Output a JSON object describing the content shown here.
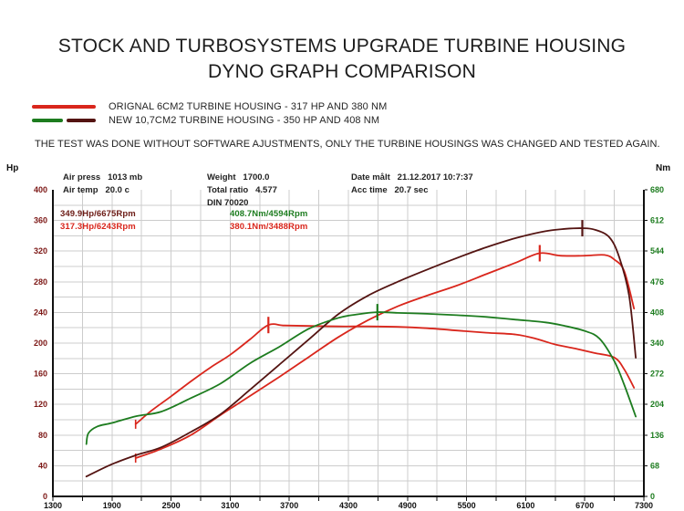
{
  "title": {
    "line1": "STOCK AND TURBOSYSTEMS UPGRADE TURBINE HOUSING",
    "line2": "DYNO GRAPH COMPARISON"
  },
  "legend": [
    {
      "label": "ORIGNAL 6CM2 TURBINE HOUSING - 317 HP AND 380 NM",
      "colors": [
        "#d9261c"
      ]
    },
    {
      "label": "NEW 10,7CM2 TURBINE HOUSING - 350 HP AND 408 NM",
      "colors": [
        "#1d7c1f",
        "#541412"
      ]
    }
  ],
  "note": "THE TEST WAS DONE WITHOUT SOFTWARE AJUSTMENTS, ONLY THE TURBINE HOUSINGS WAS CHANGED AND TESTED AGAIN.",
  "test_info": {
    "col1": [
      {
        "label": "Air press",
        "value": "1013 mb"
      },
      {
        "label": "Air temp",
        "value": "20.0 c"
      }
    ],
    "col2": [
      {
        "label": "Weight",
        "value": "1700.0"
      },
      {
        "label": "Total ratio",
        "value": "4.577"
      },
      {
        "label": "DIN 70020",
        "value": ""
      }
    ],
    "col3": [
      {
        "label": "Date målt",
        "value": "21.12.2017 10:7:37"
      },
      {
        "label": "Acc time",
        "value": "20.7 sec"
      }
    ]
  },
  "peak_annotations": [
    {
      "text": "349.9Hp/6675Rpm",
      "color": "#6b1a14"
    },
    {
      "text": "408.7Nm/4594Rpm",
      "color": "#1d7c1f"
    },
    {
      "text": "317.3Hp/6243Rpm",
      "color": "#d9261c"
    },
    {
      "text": "380.1Nm/3488Rpm",
      "color": "#d9261c"
    }
  ],
  "chart_data": {
    "type": "line",
    "grid": true,
    "x_axis": {
      "unit": "Rpm",
      "min": 1300,
      "max": 7300,
      "grid_step": 300,
      "label_step": 600,
      "labels": [
        1300,
        1900,
        2500,
        3100,
        3700,
        4300,
        4900,
        5500,
        6100,
        6700,
        7300
      ],
      "label_color": "#111111"
    },
    "y_left": {
      "unit": "Hp",
      "min": 0,
      "max": 400,
      "grid_step": 20,
      "ticks": [
        400,
        360,
        320,
        280,
        240,
        200,
        160,
        120,
        80,
        40,
        0
      ],
      "label_color": "#7c1715"
    },
    "y_right": {
      "unit": "Nm",
      "min": 0,
      "max": 680,
      "ticks": [
        680,
        612,
        544,
        476,
        408,
        340,
        272,
        204,
        136,
        68,
        0
      ],
      "label_color": "#1d7c1f"
    },
    "series": [
      {
        "id": "stock-power-hp",
        "axis": "left",
        "color": "#d9261c",
        "start_tick": true,
        "peak_marker": [
          6243,
          317.3
        ],
        "points": [
          [
            2140,
            50
          ],
          [
            2400,
            62
          ],
          [
            2700,
            80
          ],
          [
            3000,
            106
          ],
          [
            3300,
            131
          ],
          [
            3600,
            156
          ],
          [
            3900,
            182
          ],
          [
            4200,
            208
          ],
          [
            4500,
            230
          ],
          [
            4800,
            248
          ],
          [
            5100,
            262
          ],
          [
            5400,
            275
          ],
          [
            5700,
            290
          ],
          [
            6000,
            305
          ],
          [
            6243,
            317.3
          ],
          [
            6450,
            314
          ],
          [
            6700,
            314
          ],
          [
            6900,
            315
          ],
          [
            7000,
            309
          ],
          [
            7100,
            294
          ],
          [
            7200,
            245
          ]
        ]
      },
      {
        "id": "stock-torque-nm",
        "axis": "right",
        "color": "#d9261c",
        "start_tick": true,
        "peak_marker": [
          3488,
          380.1
        ],
        "points": [
          [
            2140,
            160
          ],
          [
            2300,
            190
          ],
          [
            2500,
            222
          ],
          [
            2700,
            255
          ],
          [
            2900,
            286
          ],
          [
            3100,
            314
          ],
          [
            3300,
            348
          ],
          [
            3488,
            380.1
          ],
          [
            3650,
            379
          ],
          [
            3900,
            378
          ],
          [
            4200,
            377
          ],
          [
            4500,
            377
          ],
          [
            4800,
            376
          ],
          [
            5100,
            373
          ],
          [
            5400,
            368
          ],
          [
            5700,
            363
          ],
          [
            6000,
            359
          ],
          [
            6200,
            350
          ],
          [
            6400,
            337
          ],
          [
            6600,
            328
          ],
          [
            6800,
            318
          ],
          [
            7000,
            308
          ],
          [
            7100,
            282
          ],
          [
            7200,
            241
          ]
        ]
      },
      {
        "id": "new-power-hp",
        "axis": "left",
        "color": "#541412",
        "start_tick": false,
        "peak_marker": [
          6675,
          349.9
        ],
        "points": [
          [
            1640,
            26
          ],
          [
            1900,
            42
          ],
          [
            2150,
            54
          ],
          [
            2400,
            64
          ],
          [
            2700,
            84
          ],
          [
            3000,
            107
          ],
          [
            3300,
            139
          ],
          [
            3600,
            172
          ],
          [
            3900,
            205
          ],
          [
            4200,
            238
          ],
          [
            4500,
            262
          ],
          [
            4800,
            280
          ],
          [
            5100,
            296
          ],
          [
            5400,
            311
          ],
          [
            5700,
            325
          ],
          [
            6000,
            337
          ],
          [
            6300,
            346
          ],
          [
            6500,
            349
          ],
          [
            6675,
            349.9
          ],
          [
            6800,
            348
          ],
          [
            6950,
            338
          ],
          [
            7050,
            312
          ],
          [
            7150,
            262
          ],
          [
            7218,
            181
          ]
        ]
      },
      {
        "id": "new-torque-nm",
        "axis": "right",
        "color": "#1d7c1f",
        "start_tick": false,
        "peak_marker": [
          4594,
          408.7
        ],
        "points": [
          [
            1640,
            116
          ],
          [
            1660,
            140
          ],
          [
            1750,
            155
          ],
          [
            1900,
            163
          ],
          [
            2150,
            178
          ],
          [
            2400,
            188
          ],
          [
            2700,
            218
          ],
          [
            3000,
            250
          ],
          [
            3300,
            295
          ],
          [
            3600,
            332
          ],
          [
            3900,
            372
          ],
          [
            4200,
            396
          ],
          [
            4400,
            404
          ],
          [
            4594,
            408.7
          ],
          [
            4800,
            407
          ],
          [
            5100,
            405
          ],
          [
            5400,
            402
          ],
          [
            5700,
            398
          ],
          [
            6000,
            392
          ],
          [
            6300,
            386
          ],
          [
            6500,
            378
          ],
          [
            6700,
            367
          ],
          [
            6850,
            350
          ],
          [
            7000,
            300
          ],
          [
            7100,
            248
          ],
          [
            7218,
            177
          ]
        ]
      }
    ]
  }
}
